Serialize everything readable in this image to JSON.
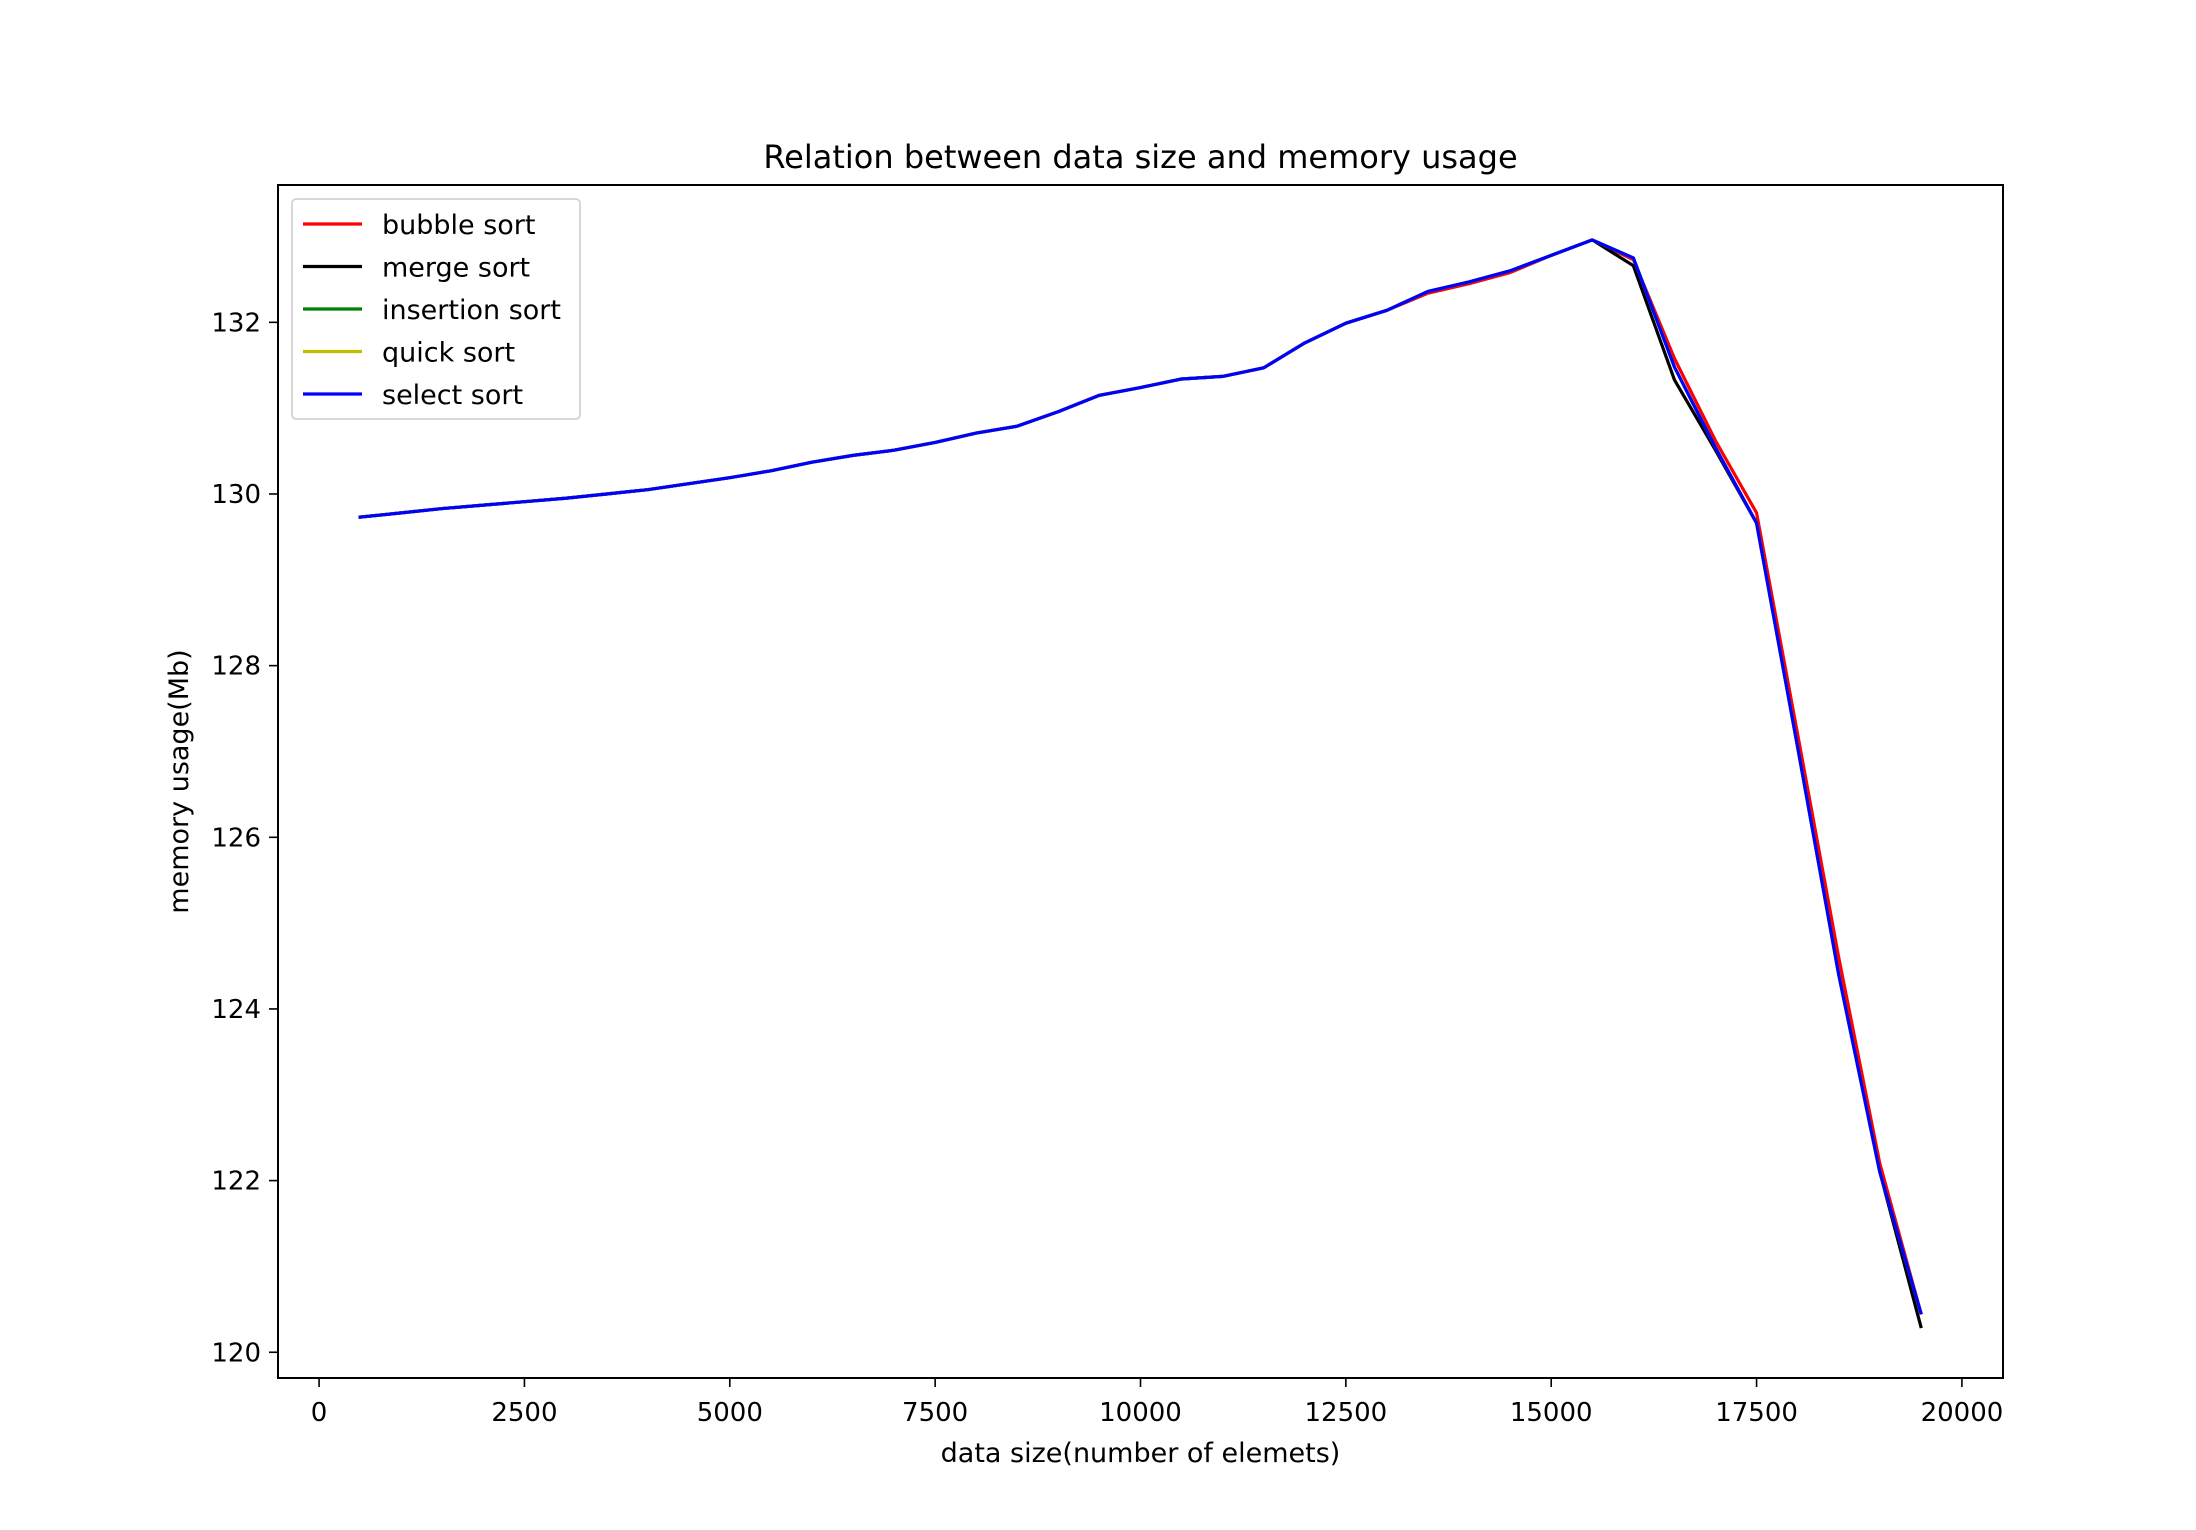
{
  "chart_data": {
    "type": "line",
    "title": "Relation between data size and memory usage",
    "xlabel": "data size(number of elemets)",
    "ylabel": "memory usage(Mb)",
    "xlim": [
      -500,
      20500
    ],
    "ylim": [
      119.7,
      133.6
    ],
    "xticks": [
      0,
      2500,
      5000,
      7500,
      10000,
      12500,
      15000,
      17500,
      20000
    ],
    "yticks": [
      120,
      122,
      124,
      126,
      128,
      130,
      132
    ],
    "grid": false,
    "legend_position": "top-left",
    "x": [
      500,
      1000,
      1500,
      2000,
      2500,
      3000,
      3500,
      4000,
      4500,
      5000,
      5500,
      6000,
      6500,
      7000,
      7500,
      8000,
      8500,
      9000,
      9500,
      10000,
      10500,
      11000,
      11500,
      12000,
      12500,
      13000,
      13500,
      14000,
      14500,
      15000,
      15500,
      16000,
      16500,
      17000,
      17500,
      18000,
      18500,
      19000,
      19500
    ],
    "series": [
      {
        "name": "bubble sort",
        "color": "#ff0000",
        "values": [
          129.73,
          129.78,
          129.83,
          129.87,
          129.91,
          129.95,
          130.0,
          130.05,
          130.12,
          130.19,
          130.27,
          130.37,
          130.45,
          130.51,
          130.6,
          130.71,
          130.79,
          130.96,
          131.15,
          131.24,
          131.34,
          131.37,
          131.47,
          131.76,
          131.99,
          132.14,
          132.34,
          132.45,
          132.58,
          132.78,
          132.96,
          132.73,
          131.58,
          130.62,
          129.78,
          127.2,
          124.6,
          122.2,
          120.46
        ]
      },
      {
        "name": "merge sort",
        "color": "#000000",
        "values": [
          129.73,
          129.78,
          129.83,
          129.87,
          129.91,
          129.95,
          130.0,
          130.05,
          130.12,
          130.19,
          130.27,
          130.37,
          130.45,
          130.51,
          130.6,
          130.71,
          130.79,
          130.96,
          131.15,
          131.24,
          131.34,
          131.37,
          131.47,
          131.76,
          131.99,
          132.14,
          132.36,
          132.47,
          132.6,
          132.78,
          132.96,
          132.66,
          131.33,
          130.51,
          129.66,
          127.05,
          124.4,
          122.1,
          120.3
        ]
      },
      {
        "name": "insertion sort",
        "color": "#008000",
        "values": [
          129.73,
          129.78,
          129.83,
          129.87,
          129.91,
          129.95,
          130.0,
          130.05,
          130.12,
          130.19,
          130.27,
          130.37,
          130.45,
          130.51,
          130.6,
          130.71,
          130.79,
          130.96,
          131.15,
          131.24,
          131.34,
          131.37,
          131.47,
          131.76,
          131.99,
          132.14,
          132.36,
          132.47,
          132.6,
          132.78,
          132.96,
          132.75,
          131.48,
          130.54,
          129.66,
          127.05,
          124.4,
          122.1,
          120.46
        ]
      },
      {
        "name": "quick sort",
        "color": "#bfbf00",
        "values": [
          129.73,
          129.78,
          129.83,
          129.87,
          129.91,
          129.95,
          130.0,
          130.05,
          130.12,
          130.19,
          130.27,
          130.37,
          130.45,
          130.51,
          130.6,
          130.71,
          130.79,
          130.96,
          131.15,
          131.24,
          131.34,
          131.37,
          131.47,
          131.76,
          131.99,
          132.14,
          132.36,
          132.47,
          132.6,
          132.78,
          132.96,
          132.75,
          131.48,
          130.54,
          129.66,
          127.05,
          124.4,
          122.1,
          120.46
        ]
      },
      {
        "name": "select sort",
        "color": "#0000ff",
        "values": [
          129.73,
          129.78,
          129.83,
          129.87,
          129.91,
          129.95,
          130.0,
          130.05,
          130.12,
          130.19,
          130.27,
          130.37,
          130.45,
          130.51,
          130.6,
          130.71,
          130.79,
          130.96,
          131.15,
          131.24,
          131.34,
          131.37,
          131.47,
          131.76,
          131.99,
          132.14,
          132.36,
          132.47,
          132.6,
          132.78,
          132.96,
          132.75,
          131.48,
          130.54,
          129.66,
          127.05,
          124.4,
          122.1,
          120.46
        ]
      }
    ]
  }
}
